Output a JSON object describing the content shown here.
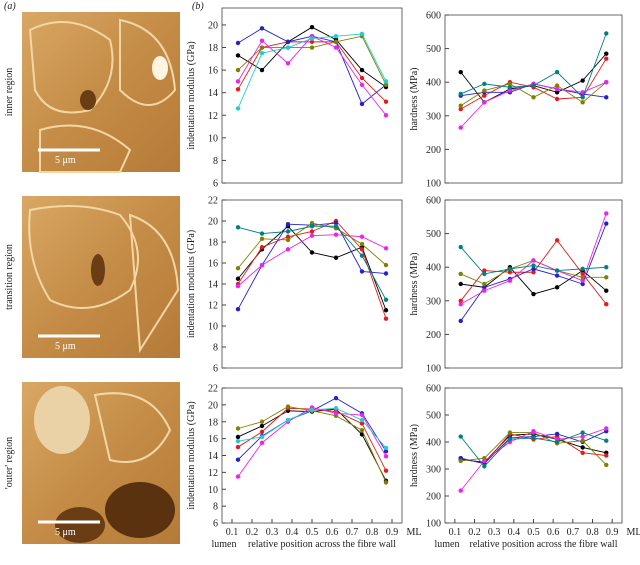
{
  "panel_labels": [
    "(a)",
    "(b)"
  ],
  "images": [
    {
      "row_label": "inner region",
      "scale_label": "5 μm"
    },
    {
      "row_label": "transition region",
      "scale_label": "5 μm"
    },
    {
      "row_label": "'outer' region",
      "scale_label": "5 μm"
    }
  ],
  "chart_data": [
    {
      "type": "line",
      "y_label": "indentation modulus (GPa)",
      "x": [
        0.13,
        0.25,
        0.38,
        0.5,
        0.62,
        0.75,
        0.87
      ],
      "xlim": [
        0.05,
        0.95
      ],
      "ylim": [
        6,
        21.5
      ],
      "yticks": [
        6,
        8,
        10,
        12,
        14,
        16,
        18,
        20
      ],
      "series": [
        {
          "color": "#000000",
          "values": [
            17.3,
            16,
            18.5,
            19.8,
            18.7,
            16,
            14.5
          ]
        },
        {
          "color": "#e41a1c",
          "values": [
            14.3,
            18,
            18.5,
            18.5,
            18.5,
            15.3,
            13.2
          ]
        },
        {
          "color": "#2222cc",
          "values": [
            18.4,
            19.7,
            18.5,
            19,
            18.5,
            13,
            14.7
          ]
        },
        {
          "color": "#808000",
          "values": [
            16,
            18,
            18,
            18,
            18.5,
            19,
            14.7
          ]
        },
        {
          "color": "#ee22ee",
          "values": [
            15,
            18.6,
            16.6,
            19,
            18,
            14.7,
            12
          ]
        },
        {
          "color": "#22cccc",
          "values": [
            12.6,
            17.5,
            18,
            18.8,
            19,
            19.2,
            15
          ]
        }
      ]
    },
    {
      "type": "line",
      "y_label": "hardness (MPa)",
      "x": [
        0.13,
        0.25,
        0.38,
        0.5,
        0.62,
        0.75,
        0.87
      ],
      "xlim": [
        0.05,
        0.95
      ],
      "ylim": [
        100,
        600
      ],
      "yticks": [
        100,
        200,
        300,
        400,
        500,
        600
      ],
      "series": [
        {
          "color": "#000000",
          "values": [
            430,
            340,
            380,
            390,
            370,
            405,
            485
          ]
        },
        {
          "color": "#e41a1c",
          "values": [
            320,
            360,
            400,
            385,
            350,
            355,
            470
          ]
        },
        {
          "color": "#2222cc",
          "values": [
            360,
            370,
            370,
            395,
            380,
            365,
            355
          ]
        },
        {
          "color": "#808000",
          "values": [
            330,
            375,
            395,
            355,
            390,
            340,
            400
          ]
        },
        {
          "color": "#ee22ee",
          "values": [
            265,
            340,
            375,
            395,
            380,
            370,
            400
          ]
        },
        {
          "color": "#008080",
          "values": [
            365,
            395,
            385,
            390,
            430,
            355,
            545
          ]
        }
      ]
    },
    {
      "type": "line",
      "y_label": "indentation modulus (GPa)",
      "x": [
        0.13,
        0.25,
        0.38,
        0.5,
        0.62,
        0.75,
        0.87
      ],
      "xlim": [
        0.05,
        0.95
      ],
      "ylim": [
        6,
        22
      ],
      "yticks": [
        6,
        8,
        10,
        12,
        14,
        16,
        18,
        20,
        22
      ],
      "series": [
        {
          "color": "#000000",
          "values": [
            14.5,
            17.3,
            19.5,
            17,
            16.5,
            17.5,
            11.5
          ]
        },
        {
          "color": "#e41a1c",
          "values": [
            14,
            17.5,
            18.5,
            19,
            20,
            17.3,
            10.7
          ]
        },
        {
          "color": "#2222cc",
          "values": [
            11.6,
            15.8,
            19.7,
            19.6,
            19.8,
            15.2,
            15
          ]
        },
        {
          "color": "#808000",
          "values": [
            15.5,
            18.3,
            18.2,
            19.8,
            19.3,
            17.8,
            15.8
          ]
        },
        {
          "color": "#ee22ee",
          "values": [
            13.8,
            15.8,
            17.3,
            18.6,
            18.7,
            18.5,
            17.4
          ]
        },
        {
          "color": "#008080",
          "values": [
            19.4,
            18.8,
            19,
            19.5,
            19.5,
            16.7,
            12.5
          ]
        }
      ]
    },
    {
      "type": "line",
      "y_label": "hardness (MPa)",
      "x": [
        0.13,
        0.25,
        0.38,
        0.5,
        0.62,
        0.75,
        0.87
      ],
      "xlim": [
        0.05,
        0.95
      ],
      "ylim": [
        100,
        600
      ],
      "yticks": [
        100,
        200,
        300,
        400,
        500,
        600
      ],
      "series": [
        {
          "color": "#000000",
          "values": [
            350,
            340,
            400,
            320,
            340,
            390,
            330
          ]
        },
        {
          "color": "#e41a1c",
          "values": [
            300,
            390,
            385,
            385,
            480,
            380,
            290
          ]
        },
        {
          "color": "#2222cc",
          "values": [
            240,
            340,
            365,
            395,
            375,
            350,
            530
          ]
        },
        {
          "color": "#808000",
          "values": [
            380,
            350,
            395,
            420,
            390,
            370,
            370
          ]
        },
        {
          "color": "#ee22ee",
          "values": [
            290,
            330,
            360,
            420,
            390,
            360,
            560
          ]
        },
        {
          "color": "#008080",
          "values": [
            460,
            380,
            395,
            405,
            390,
            395,
            400
          ]
        }
      ]
    },
    {
      "type": "line",
      "y_label": "indentation modulus (GPa)",
      "x_label": "relative position across the fibre wall",
      "x_side_labels": [
        "lumen",
        "ML"
      ],
      "x": [
        0.13,
        0.25,
        0.38,
        0.5,
        0.62,
        0.75,
        0.87
      ],
      "xlim": [
        0.05,
        0.95
      ],
      "ylim": [
        6,
        22
      ],
      "yticks": [
        6,
        8,
        10,
        12,
        14,
        16,
        18,
        20,
        22
      ],
      "xticks": [
        0.1,
        0.2,
        0.3,
        0.4,
        0.5,
        0.6,
        0.7,
        0.8,
        0.9
      ],
      "series": [
        {
          "color": "#000000",
          "values": [
            16.2,
            17.5,
            19.3,
            19.2,
            19.5,
            16.5,
            11
          ]
        },
        {
          "color": "#e41a1c",
          "values": [
            15,
            16.8,
            19.6,
            19.5,
            19.2,
            17.8,
            12.2
          ]
        },
        {
          "color": "#2222cc",
          "values": [
            13.5,
            16.3,
            18.2,
            19.3,
            20.8,
            19,
            14.5
          ]
        },
        {
          "color": "#808000",
          "values": [
            17.2,
            18,
            19.8,
            19.3,
            18.7,
            17,
            10.8
          ]
        },
        {
          "color": "#ee22ee",
          "values": [
            11.5,
            15.5,
            18,
            19.7,
            19,
            18.8,
            13.9
          ]
        },
        {
          "color": "#22cccc",
          "values": [
            15.7,
            16.2,
            18.2,
            19.4,
            19.6,
            18.2,
            14.9
          ]
        }
      ]
    },
    {
      "type": "line",
      "y_label": "hardness (MPa)",
      "x_label": "relative position across the fibre wall",
      "x_side_labels": [
        "lumen",
        "ML"
      ],
      "x": [
        0.13,
        0.25,
        0.38,
        0.5,
        0.62,
        0.75,
        0.87
      ],
      "xlim": [
        0.05,
        0.95
      ],
      "ylim": [
        100,
        600
      ],
      "yticks": [
        100,
        200,
        300,
        400,
        500,
        600
      ],
      "xticks": [
        0.1,
        0.2,
        0.3,
        0.4,
        0.5,
        0.6,
        0.7,
        0.8,
        0.9
      ],
      "series": [
        {
          "color": "#000000",
          "values": [
            335,
            325,
            425,
            430,
            410,
            380,
            360
          ]
        },
        {
          "color": "#e41a1c",
          "values": [
            340,
            320,
            430,
            410,
            420,
            360,
            350
          ]
        },
        {
          "color": "#2222cc",
          "values": [
            340,
            320,
            415,
            420,
            430,
            400,
            440
          ]
        },
        {
          "color": "#808000",
          "values": [
            330,
            340,
            435,
            435,
            395,
            405,
            315
          ]
        },
        {
          "color": "#ee22ee",
          "values": [
            220,
            330,
            400,
            440,
            410,
            420,
            450
          ]
        },
        {
          "color": "#008080",
          "values": [
            420,
            310,
            410,
            415,
            400,
            435,
            405
          ]
        }
      ]
    }
  ]
}
